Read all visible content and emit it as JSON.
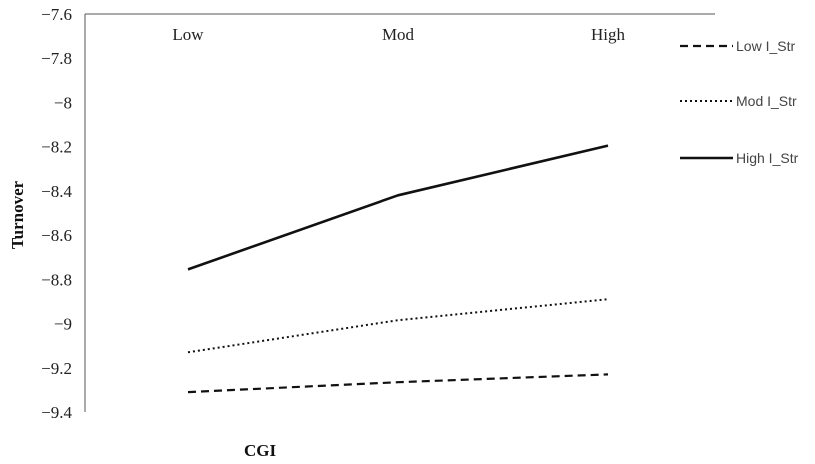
{
  "chart_data": {
    "type": "line",
    "categories": [
      "Low",
      "Mod",
      "High"
    ],
    "xlabel": "CGI",
    "ylabel": "Turnover",
    "ylim": [
      -9.4,
      -7.6
    ],
    "yticks": [
      -7.6,
      -7.8,
      -8,
      -8.2,
      -8.4,
      -8.6,
      -8.8,
      -9,
      -9.2,
      -9.4
    ],
    "ytick_labels": [
      "−7.6",
      "−7.8",
      "−8",
      "−8.2",
      "−8.4",
      "−8.6",
      "−8.8",
      "−9",
      "−9.2",
      "−9.4"
    ],
    "category_label_position": "top",
    "grid": false,
    "legend_position": "right",
    "series": [
      {
        "name": "Low I_Str",
        "values": [
          -9.31,
          -9.265,
          -9.23
        ],
        "dash": "dashed",
        "color": "#111111"
      },
      {
        "name": "Mod I_Str",
        "values": [
          -9.13,
          -8.985,
          -8.89
        ],
        "dash": "dotted",
        "color": "#111111"
      },
      {
        "name": "High I_Str",
        "values": [
          -8.755,
          -8.42,
          -8.195
        ],
        "dash": "solid",
        "color": "#111111"
      }
    ]
  }
}
